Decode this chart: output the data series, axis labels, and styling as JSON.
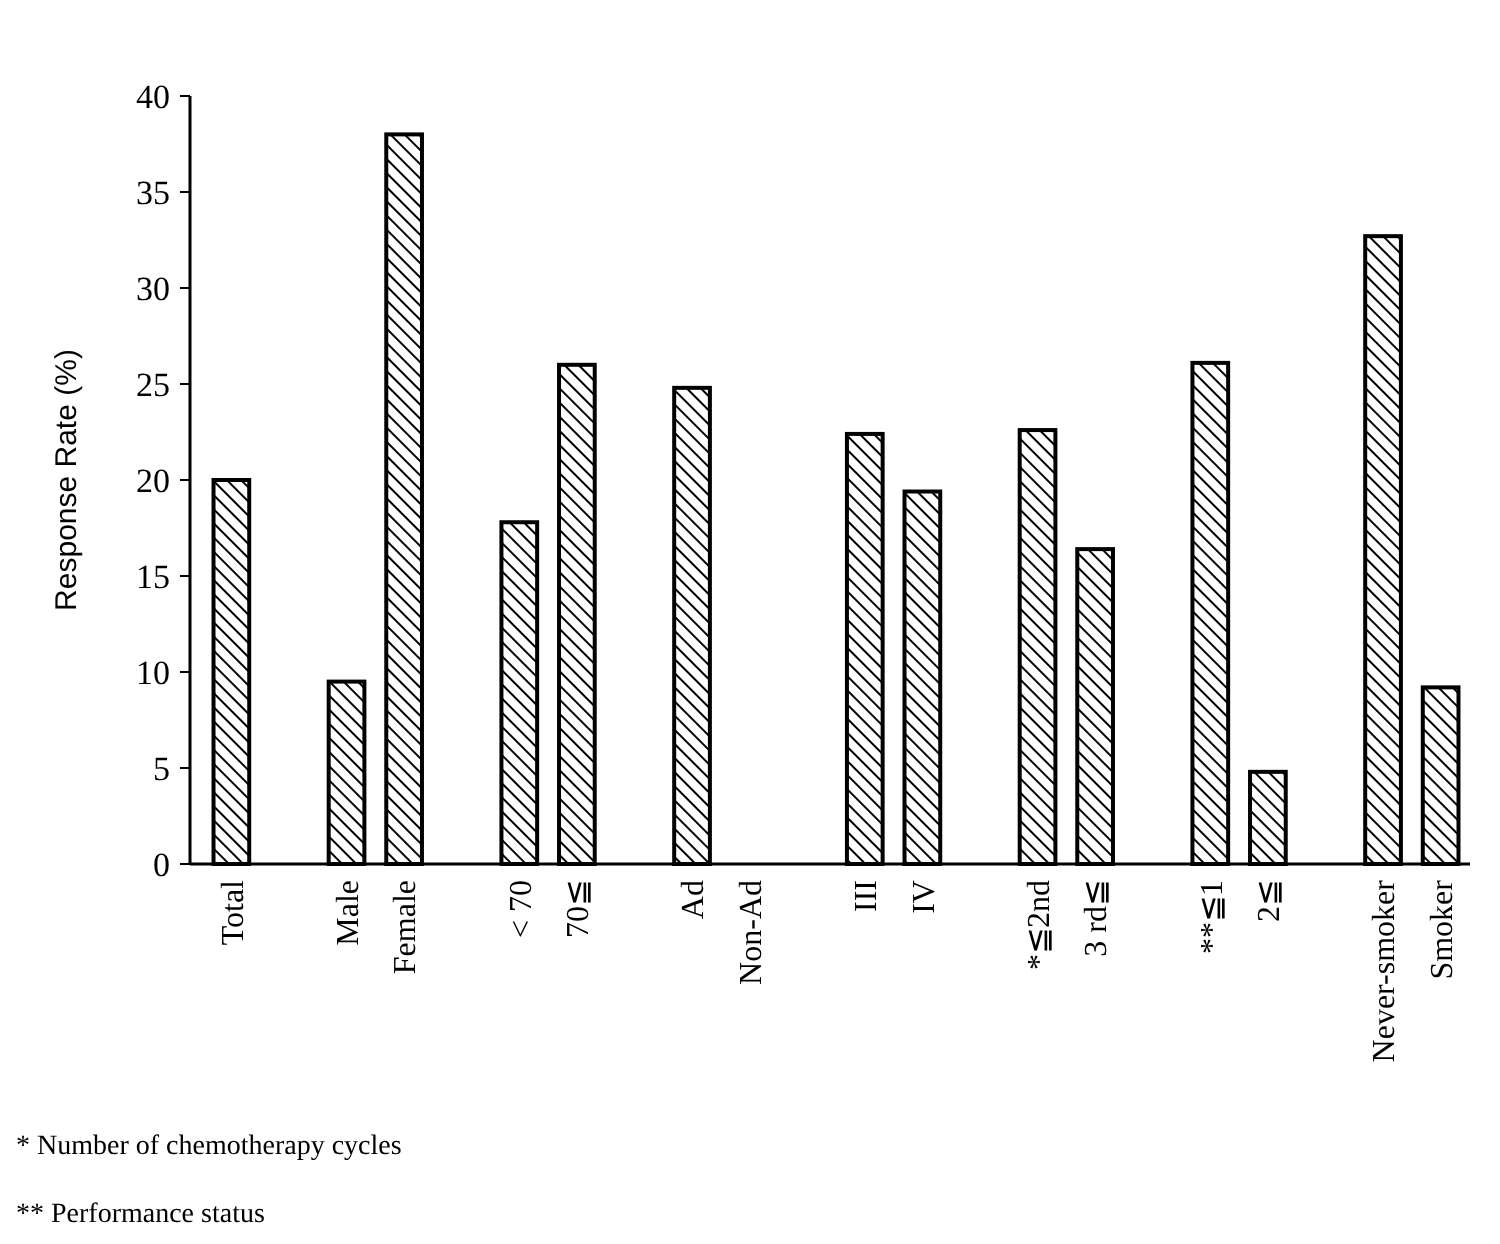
{
  "chart_data": {
    "type": "bar",
    "ylabel": "Response Rate (%)",
    "categories": [
      "Total",
      null,
      "Male",
      "Female",
      null,
      "< 70",
      "70≦",
      null,
      "Ad",
      "Non-Ad",
      null,
      "III",
      "IV",
      null,
      "*≦2nd",
      "3 rd≦",
      null,
      "**≦1",
      "2≦",
      null,
      "Never-smoker",
      "Smoker"
    ],
    "values": [
      20,
      null,
      9.5,
      38,
      null,
      17.8,
      26,
      null,
      24.8,
      0,
      null,
      22.4,
      19.4,
      null,
      22.6,
      16.4,
      null,
      26.1,
      4.8,
      null,
      32.7,
      9.2
    ],
    "color": "#000000",
    "ylim": [
      0,
      40
    ],
    "yticks": [
      0,
      5,
      10,
      15,
      20,
      25,
      30,
      35,
      40
    ],
    "grid": false,
    "annotations": [
      "* Number of chemotherapy cycles",
      "** Performance status"
    ]
  }
}
